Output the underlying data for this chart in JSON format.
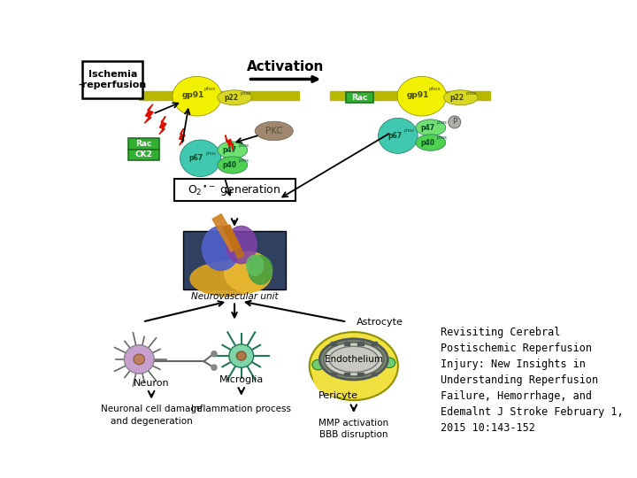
{
  "bg_color": "#ffffff",
  "title_text": "Revisiting Cerebral\nPostischemic Reperfusion\nInjury: New Insights in\nUnderstanding Reperfusion\nFailure, Hemorrhage, and\nEdemalnt J Stroke February 1,\n2015 10:143-152",
  "title_fontsize": 8.5,
  "activation_text": "Activation",
  "ischemia_text": "Ischemia\n-reperfusion",
  "neurovascular_text": "Neurovascular unit",
  "neuron_text": "Neuron",
  "microglia_text": "Microglia",
  "pericyte_text": "Pericyte",
  "astrocyte_text": "Astrocyte",
  "endothelium_text": "Endothelium",
  "neuronal_damage_text": "Neuronal cell damage\nand degeneration",
  "inflammation_text": "Inflammation process",
  "mmp_text": "MMP activation\nBBB disruption",
  "pkc_text": "PKC",
  "gp91_color": "#f0f000",
  "p22_color": "#d8d820",
  "membrane_color": "#b8b800",
  "p67_color": "#40c8b0",
  "p47_color": "#70e070",
  "p40_color": "#50d050",
  "rac_color": "#30b030",
  "pkc_color": "#a08870",
  "lightning_color": "#dd1100",
  "neuron_soma_color": "#c8a0d0",
  "neuron_nucleus_color": "#c08060",
  "microglia_color": "#80d4a8",
  "astrocyte_color": "#f0e040",
  "endothelium_outer_color": "#d0d0c8",
  "endothelium_inner_color": "#c8c8c0",
  "pericyte_dot_color": "#70cc70"
}
